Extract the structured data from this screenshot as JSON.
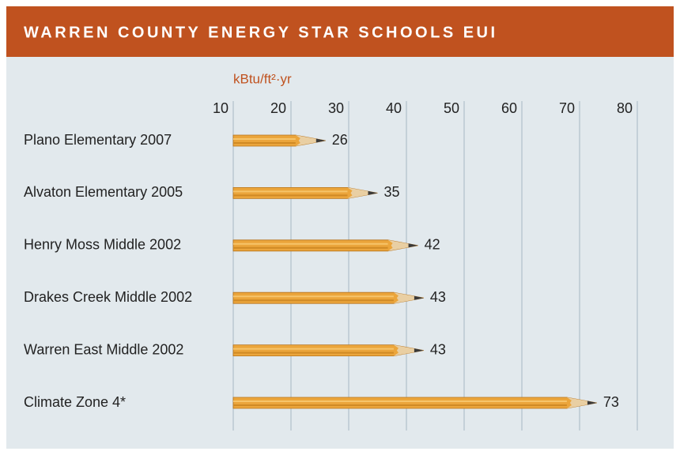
{
  "chart_data": {
    "type": "bar",
    "orientation": "horizontal",
    "title": "WARREN COUNTY ENERGY STAR SCHOOLS EUI",
    "x_label": "kBtu/ft²·yr",
    "categories": [
      "Plano Elementary 2007",
      "Alvaton Elementary 2005",
      "Henry Moss Middle 2002",
      "Drakes Creek Middle 2002",
      "Warren East Middle 2002",
      "Climate Zone 4*"
    ],
    "values": [
      26,
      35,
      42,
      43,
      43,
      73
    ],
    "color": "#eba53b",
    "xlim": [
      10,
      80
    ],
    "xticks": [
      10,
      20,
      30,
      40,
      50,
      60,
      70,
      80
    ],
    "grid": true
  }
}
